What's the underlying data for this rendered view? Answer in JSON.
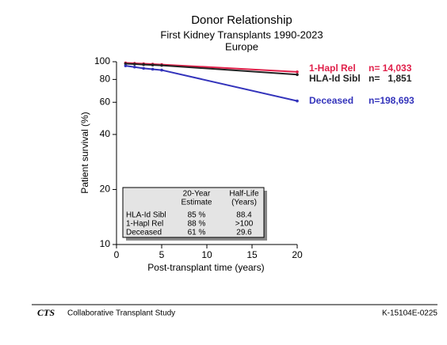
{
  "chart_data": {
    "type": "line",
    "title": "Donor Relationship",
    "subtitle": "First Kidney Transplants 1990-2023",
    "region": "Europe",
    "x_label": "Post-transplant time (years)",
    "y_label": "Patient survival (%)",
    "log_y": true,
    "xlim": [
      0,
      20
    ],
    "xticks": [
      0,
      5,
      10,
      15,
      20
    ],
    "ylim": [
      10,
      100
    ],
    "yticks": [
      10,
      20,
      40,
      60,
      80,
      100
    ],
    "x": [
      1,
      2,
      3,
      4,
      5,
      20
    ],
    "series": [
      {
        "name": "1-Hapl Rel",
        "n": "n= 14,033",
        "color": "#e0204a",
        "values": [
          98.5,
          98,
          97.5,
          97,
          96.5,
          88
        ]
      },
      {
        "name": "HLA-Id Sibl",
        "n": "n=   1,851",
        "color": "#222222",
        "values": [
          97.5,
          97,
          96.5,
          96,
          95.5,
          85
        ]
      },
      {
        "name": "Deceased",
        "n": "n=198,693",
        "color": "#3333bb",
        "values": [
          95,
          93.5,
          92,
          91,
          90,
          61
        ]
      }
    ],
    "table": {
      "headers": [
        [
          "20-Year",
          "Estimate"
        ],
        [
          "Half-Life",
          "(Years)"
        ]
      ],
      "rows": [
        [
          "HLA-Id Sibl",
          "85 %",
          "88.4"
        ],
        [
          "1-Hapl Rel",
          "88 %",
          ">100"
        ],
        [
          "Deceased",
          "61 %",
          "29.6"
        ]
      ]
    }
  },
  "footer": {
    "logo": "CTS",
    "org": "Collaborative Transplant Study",
    "code": "K-15104E-0225"
  }
}
